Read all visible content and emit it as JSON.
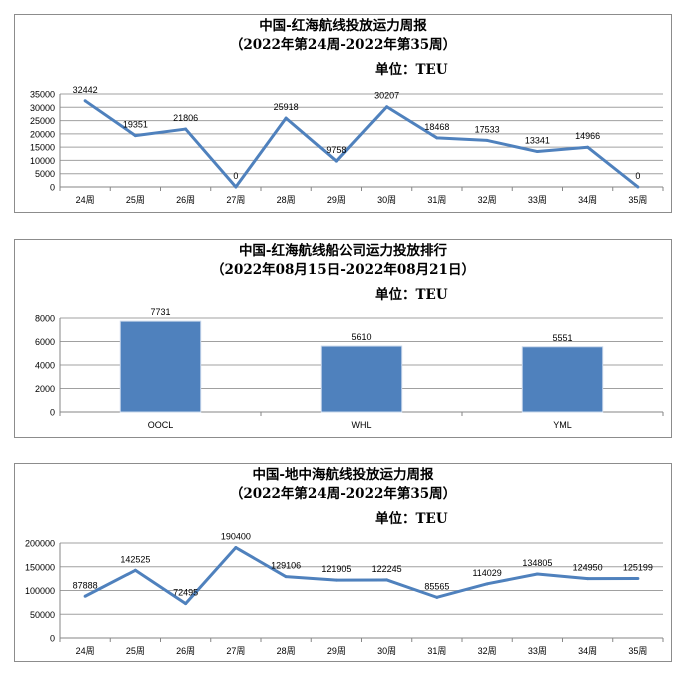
{
  "charts": [
    {
      "title_line1": "中国-红海航线投放运力周报",
      "title_line2": "（2022年第24周-2022年第35周）",
      "unit": "单位：TEU"
    },
    {
      "title_line1": "中国-红海航线船公司运力投放排行",
      "title_line2": "（2022年08月15日-2022年08月21日）",
      "unit": "单位：TEU"
    },
    {
      "title_line1": "中国-地中海航线投放运力周报",
      "title_line2": "（2022年第24周-2022年第35周）",
      "unit": "单位：TEU"
    }
  ],
  "chart_data": [
    {
      "type": "line",
      "title": "中国-红海航线投放运力周报",
      "categories": [
        "24周",
        "25周",
        "26周",
        "27周",
        "28周",
        "29周",
        "30周",
        "31周",
        "32周",
        "33周",
        "34周",
        "35周"
      ],
      "values": [
        32442,
        19351,
        21806,
        0,
        25918,
        9758,
        30207,
        18468,
        17533,
        13341,
        14966,
        0
      ],
      "ylim": [
        0,
        35000
      ],
      "yticks": [
        0,
        5000,
        10000,
        15000,
        20000,
        25000,
        30000,
        35000
      ],
      "grid": true,
      "color": "#4f81bd"
    },
    {
      "type": "bar",
      "title": "中国-红海航线船公司运力投放排行",
      "categories": [
        "OOCL",
        "WHL",
        "YML"
      ],
      "values": [
        7731,
        5610,
        5551
      ],
      "ylim": [
        0,
        8000
      ],
      "yticks": [
        0,
        2000,
        4000,
        6000,
        8000
      ],
      "grid": true,
      "color": "#4f81bd"
    },
    {
      "type": "line",
      "title": "中国-地中海航线投放运力周报",
      "categories": [
        "24周",
        "25周",
        "26周",
        "27周",
        "28周",
        "29周",
        "30周",
        "31周",
        "32周",
        "33周",
        "34周",
        "35周"
      ],
      "values": [
        87888,
        142525,
        72495,
        190400,
        129106,
        121905,
        122245,
        85565,
        114029,
        134805,
        124950,
        125199
      ],
      "ylim": [
        0,
        200000
      ],
      "yticks": [
        0,
        50000,
        100000,
        150000,
        200000
      ],
      "grid": true,
      "color": "#4f81bd"
    }
  ]
}
